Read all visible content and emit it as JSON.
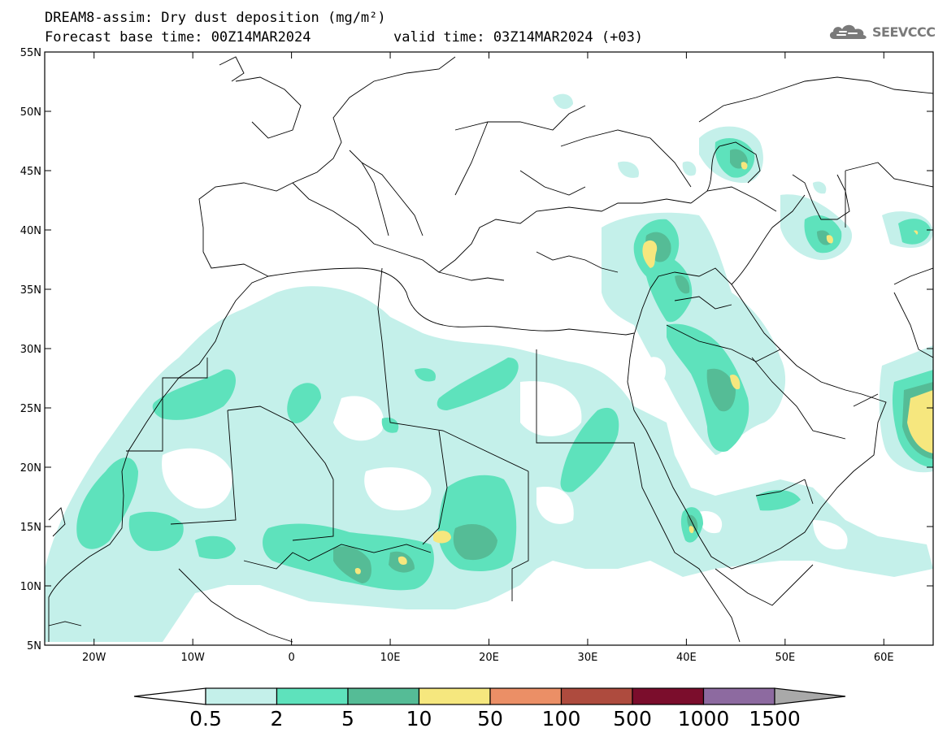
{
  "title": {
    "line1": "DREAM8-assim: Dry dust deposition (mg/m²)",
    "base": "Forecast base time: 00Z14MAR2024",
    "valid": "valid time: 03Z14MAR2024 (+03)"
  },
  "logo": {
    "text": "SEEVCCC",
    "icon": "cloud-icon"
  },
  "map": {
    "lon_range": [
      -25,
      65
    ],
    "lat_range": [
      5,
      55
    ],
    "lat_ticks": [
      "55N",
      "50N",
      "45N",
      "40N",
      "35N",
      "30N",
      "25N",
      "20N",
      "15N",
      "10N",
      "5N"
    ],
    "lon_ticks": [
      "20W",
      "10W",
      "0",
      "10E",
      "20E",
      "30E",
      "40E",
      "50E",
      "60E"
    ],
    "lon_tick_values": [
      -20,
      -10,
      0,
      10,
      20,
      30,
      40,
      50,
      60
    ],
    "lat_tick_values": [
      55,
      50,
      45,
      40,
      35,
      30,
      25,
      20,
      15,
      10,
      5
    ]
  },
  "legend": {
    "labels": [
      "0.5",
      "2",
      "5",
      "10",
      "50",
      "100",
      "500",
      "1000",
      "1500"
    ],
    "colors": [
      "#c4f0ea",
      "#5ee2bc",
      "#55bc96",
      "#f6e77e",
      "#eb8f66",
      "#ae4b3e",
      "#7b0d2c",
      "#8d6aa0"
    ],
    "over_color": "#a9a9a9",
    "under_color": "#ffffff"
  },
  "colors": {
    "level1": "#c4f0ea",
    "level2": "#5ee2bc",
    "level3": "#55bc96",
    "level4": "#f6e77e"
  }
}
